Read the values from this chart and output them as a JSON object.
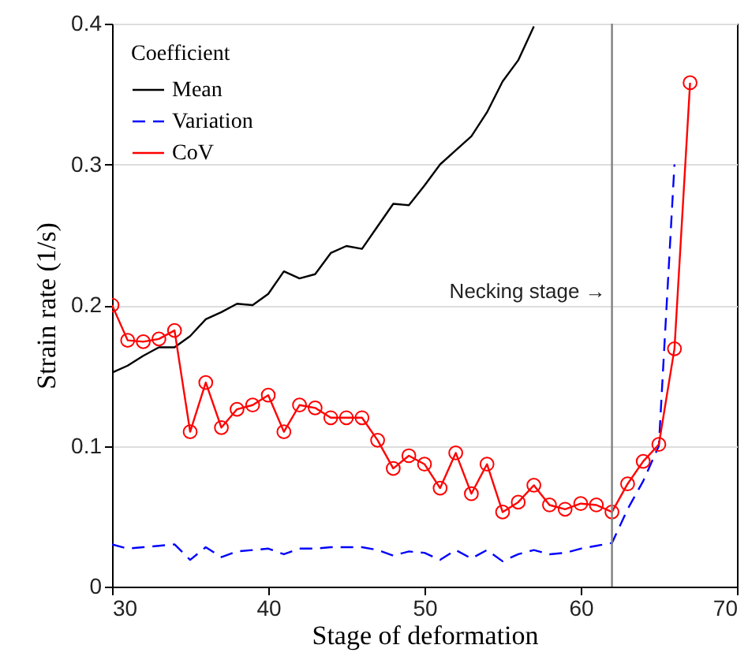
{
  "chart_data": {
    "type": "line",
    "xlabel": "Stage of deformation",
    "ylabel": "Strain rate (1/s)",
    "legend_title": "Coefficient",
    "legend": "top left",
    "grid": "y",
    "x": [
      30,
      31,
      32,
      33,
      34,
      35,
      36,
      37,
      38,
      39,
      40,
      41,
      42,
      43,
      44,
      45,
      46,
      47,
      48,
      49,
      50,
      51,
      52,
      53,
      54,
      55,
      56,
      57,
      58,
      59,
      60,
      61,
      62,
      63,
      64,
      65,
      66,
      67
    ],
    "xlim": [
      30,
      70
    ],
    "xticks": [
      30,
      40,
      50,
      60,
      70
    ],
    "ylim": [
      0,
      0.4
    ],
    "yticks": [
      0,
      0.1,
      0.2,
      0.3,
      0.4
    ],
    "series": [
      {
        "name": "Mean",
        "color": "#000000",
        "line_style": "solid",
        "marker": "none",
        "values": [
          0.152,
          0.157,
          0.164,
          0.17,
          0.17,
          0.178,
          0.19,
          0.195,
          0.201,
          0.2,
          0.208,
          0.224,
          0.219,
          0.222,
          0.237,
          0.242,
          0.24,
          0.256,
          0.272,
          0.271,
          0.285,
          0.3,
          0.31,
          0.32,
          0.337,
          0.359,
          0.374,
          0.398,
          null,
          null,
          null,
          null,
          null,
          null,
          null,
          null,
          null,
          null
        ]
      },
      {
        "name": "Variation",
        "color": "#0000ff",
        "line_style": "dashed",
        "marker": "none",
        "values": [
          0.03,
          0.027,
          0.028,
          0.029,
          0.03,
          0.019,
          0.028,
          0.021,
          0.025,
          0.026,
          0.027,
          0.023,
          0.027,
          0.027,
          0.028,
          0.028,
          0.028,
          0.026,
          0.022,
          0.025,
          0.024,
          0.019,
          0.026,
          0.02,
          0.026,
          0.018,
          0.023,
          0.026,
          0.023,
          0.024,
          0.027,
          0.029,
          0.031,
          0.055,
          0.075,
          0.1,
          0.3,
          null
        ]
      },
      {
        "name": "CoV",
        "color": "#ff0000",
        "line_style": "solid",
        "marker": "circle",
        "values": [
          0.2,
          0.175,
          0.174,
          0.176,
          0.182,
          0.11,
          0.145,
          0.113,
          0.126,
          0.129,
          0.136,
          0.11,
          0.129,
          0.127,
          0.12,
          0.12,
          0.12,
          0.104,
          0.084,
          0.093,
          0.087,
          0.07,
          0.095,
          0.066,
          0.087,
          0.053,
          0.06,
          0.072,
          0.058,
          0.055,
          0.059,
          0.058,
          0.053,
          0.073,
          0.089,
          0.101,
          0.169,
          0.358
        ]
      }
    ],
    "ref_lines": [
      {
        "axis": "x",
        "value": 62,
        "label": "Necking stage →",
        "color": "#808080"
      }
    ]
  }
}
